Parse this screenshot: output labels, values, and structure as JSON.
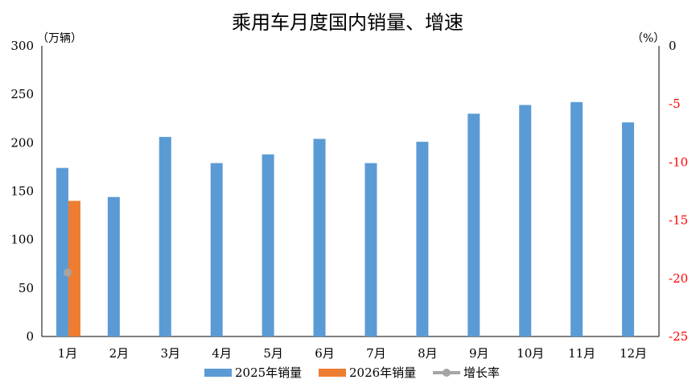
{
  "chart_data": {
    "type": "bar",
    "title": "乘用车月度国内销量、增速",
    "y_left_unit": "（万辆）",
    "y_right_unit": "（%）",
    "categories": [
      "1月",
      "2月",
      "3月",
      "4月",
      "5月",
      "6月",
      "7月",
      "8月",
      "9月",
      "10月",
      "11月",
      "12月"
    ],
    "y_left_range": [
      0,
      300
    ],
    "y_left_ticks": [
      "0",
      "50",
      "100",
      "150",
      "200",
      "250",
      "300"
    ],
    "y_right_range": [
      -25,
      0
    ],
    "y_right_ticks": [
      "0",
      "-5",
      "-10",
      "-15",
      "-20",
      "-25"
    ],
    "series": [
      {
        "name": "2025年销量",
        "kind": "bar",
        "axis": "left",
        "color": "#5B9BD5",
        "values": [
          174,
          144,
          206,
          179,
          188,
          204,
          179,
          201,
          230,
          239,
          242,
          221
        ]
      },
      {
        "name": "2026年销量",
        "kind": "bar",
        "axis": "left",
        "color": "#ED7D31",
        "values": [
          140,
          null,
          null,
          null,
          null,
          null,
          null,
          null,
          null,
          null,
          null,
          null
        ]
      },
      {
        "name": "增长率",
        "kind": "line",
        "axis": "right",
        "color": "#A5A5A5",
        "values": [
          -19.5,
          null,
          null,
          null,
          null,
          null,
          null,
          null,
          null,
          null,
          null,
          null
        ]
      }
    ],
    "grid": false,
    "legend_position": "bottom",
    "right_axis_label_color": "#FF0000"
  }
}
